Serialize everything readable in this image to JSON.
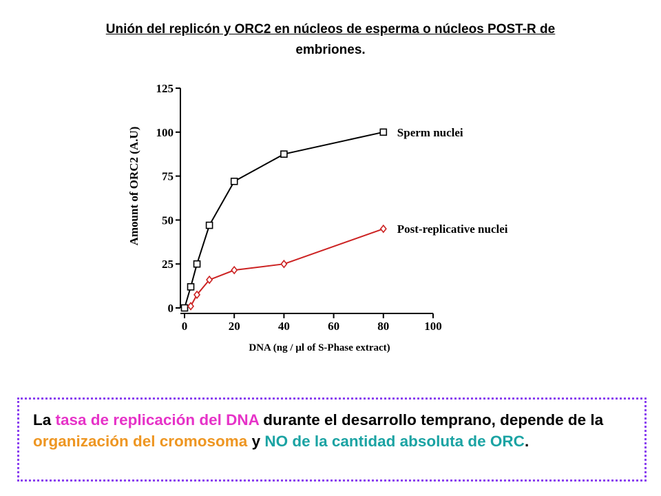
{
  "slide": {
    "title_line1": "Unión del replicón y ORC2 en núcleos de esperma o núcleos POST-R de",
    "title_line2": "embriones."
  },
  "note": {
    "part1": "La ",
    "part2": "tasa de replicación del DNA",
    "part3": " durante el desarrollo temprano, depende de la ",
    "part4": "organización del cromosoma",
    "part5": " y ",
    "part6": "NO de la cantidad absoluta de ORC",
    "part7": "."
  },
  "colors": {
    "sperm": "#000000",
    "post_replicative": "#cc2222",
    "highlight_magenta": "#e633c8",
    "highlight_orange": "#ee9622",
    "highlight_teal": "#1ba3a3",
    "border": "#8a3ff0"
  },
  "chart_data": {
    "type": "line",
    "title": "",
    "xlabel": "DNA (ng / µl of S-Phase extract)",
    "ylabel": "Amount of ORC2 (A.U)",
    "xlim": [
      0,
      100
    ],
    "ylim": [
      0,
      125
    ],
    "xticks": [
      0,
      20,
      40,
      60,
      80,
      100
    ],
    "yticks": [
      0,
      25,
      50,
      75,
      100,
      125
    ],
    "grid": false,
    "legend": "inline labels at line ends",
    "series": [
      {
        "name": "Sperm nuclei",
        "marker": "square",
        "x": [
          0,
          2.5,
          5,
          10,
          20,
          40,
          80
        ],
        "y": [
          0,
          12,
          25,
          47,
          72,
          87.5,
          100
        ]
      },
      {
        "name": "Post-replicative nuclei",
        "marker": "diamond",
        "x": [
          2.5,
          5,
          10,
          20,
          40,
          80
        ],
        "y": [
          1,
          7.5,
          16,
          21.5,
          25,
          45
        ]
      }
    ]
  }
}
